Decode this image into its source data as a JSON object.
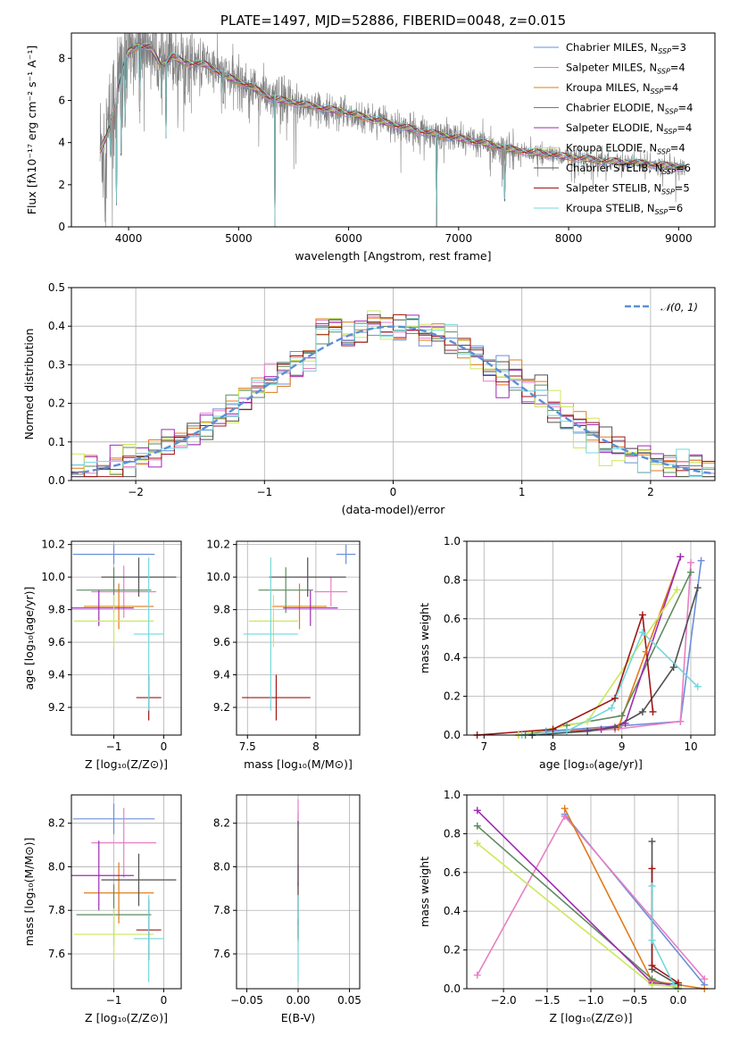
{
  "colors": {
    "chabrier_miles": "#6a8fd8",
    "salpeter_miles": "#e77fc4",
    "kroupa_miles": "#e07b1a",
    "chabrier_elodie": "#5f8a5f",
    "salpeter_elodie": "#a02ab5",
    "kroupa_elodie": "#cce85a",
    "chabrier_stelib": "#505050",
    "salpeter_stelib": "#a01515",
    "kroupa_stelib": "#72d8dc",
    "data": "#808080",
    "gauss": "#5b8fd6"
  },
  "chart_data": [
    {
      "id": "spectrum",
      "type": "line",
      "title": "PLATE=1497, MJD=52886, FIBERID=0048, z=0.015",
      "xlabel": "wavelength [Angstrom, rest frame]",
      "ylabel": "Flux [fλ10⁻¹⁷ erg cm⁻² s⁻¹ A⁻¹]",
      "xlim": [
        3480,
        9330
      ],
      "ylim": [
        0,
        9.2
      ],
      "xticks": [
        4000,
        5000,
        6000,
        7000,
        8000,
        9000
      ],
      "yticks": [
        0,
        2,
        4,
        6,
        8
      ],
      "grid": false,
      "legend_position": "upper-right",
      "legend": [
        {
          "key": "chabrier_miles",
          "label": "Chabrier MILES, N",
          "sub": "SSP",
          "value": "=3"
        },
        {
          "key": "salpeter_miles",
          "label": "Salpeter MILES, N",
          "sub": "SSP",
          "value": "=4"
        },
        {
          "key": "kroupa_miles",
          "label": "Kroupa MILES, N",
          "sub": "SSP",
          "value": "=4"
        },
        {
          "key": "chabrier_elodie",
          "label": "Chabrier ELODIE, N",
          "sub": "SSP",
          "value": "=4"
        },
        {
          "key": "salpeter_elodie",
          "label": "Salpeter ELODIE, N",
          "sub": "SSP",
          "value": "=4"
        },
        {
          "key": "kroupa_elodie",
          "label": "Kroupa ELODIE, N",
          "sub": "SSP",
          "value": "=4"
        },
        {
          "key": "chabrier_stelib",
          "label": "Chabrier STELIB, N",
          "sub": "SSP",
          "value": "=6"
        },
        {
          "key": "salpeter_stelib",
          "label": "Salpeter STELIB, N",
          "sub": "SSP",
          "value": "=5"
        },
        {
          "key": "kroupa_stelib",
          "label": "Kroupa STELIB, N",
          "sub": "SSP",
          "value": "=6"
        }
      ],
      "model_continuum": {
        "x": [
          3740,
          3800,
          3850,
          3900,
          3950,
          4000,
          4100,
          4200,
          4300,
          4400,
          4500,
          4700,
          4900,
          5100,
          5300,
          5500,
          5700,
          6000,
          6300,
          6600,
          6900,
          7200,
          7500,
          7800,
          8100,
          8400,
          8700,
          9000,
          9060
        ],
        "y": [
          3.6,
          4.3,
          5.2,
          6.6,
          7.6,
          8.3,
          8.6,
          8.5,
          7.6,
          8.1,
          7.8,
          7.7,
          7.1,
          6.7,
          6.1,
          5.9,
          5.7,
          5.4,
          5.0,
          4.6,
          4.3,
          4.0,
          3.65,
          3.45,
          3.25,
          3.1,
          3.0,
          2.85,
          2.8
        ]
      },
      "model_dips": [
        {
          "x": 3835,
          "y": 3.0
        },
        {
          "x": 3889,
          "y": 0.0
        },
        {
          "x": 3934,
          "y": 1.5
        },
        {
          "x": 3970,
          "y": 3.2
        },
        {
          "x": 4102,
          "y": 4.0
        },
        {
          "x": 4300,
          "y": 5.4
        },
        {
          "x": 4340,
          "y": 4.2
        },
        {
          "x": 4861,
          "y": 5.6
        },
        {
          "x": 5330,
          "y": 0.0
        },
        {
          "x": 6800,
          "y": 0.0
        },
        {
          "x": 7420,
          "y": 0.0
        }
      ],
      "data_x_range": [
        3740,
        9060
      ]
    },
    {
      "id": "residuals",
      "type": "area",
      "xlabel": "(data-model)/error",
      "ylabel": "Normed distribution",
      "xlim": [
        -2.5,
        2.5
      ],
      "ylim": [
        0,
        0.5
      ],
      "xticks": [
        -2,
        -1,
        0,
        1,
        2
      ],
      "yticks": [
        0.0,
        0.1,
        0.2,
        0.3,
        0.4,
        0.5
      ],
      "grid": true,
      "legend_position": "upper-right",
      "legend_label": "𝒩(0, 1)",
      "bin_width": 0.1,
      "x_start": -2.5
    },
    {
      "id": "age_vs_Z",
      "type": "scatter",
      "xlabel": "Z [log₁₀(Z/Z⊙)]",
      "ylabel": "age [log₁₀(age/yr)]",
      "xlim": [
        -1.85,
        0.35
      ],
      "ylim": [
        9.03,
        10.22
      ],
      "xticks": [
        -1,
        0
      ],
      "yticks": [
        9.2,
        9.4,
        9.6,
        9.8,
        10.0,
        10.2
      ],
      "grid": true,
      "points": [
        {
          "key": "chabrier_miles",
          "x": -1.0,
          "y": 10.14,
          "xerr": 0.82,
          "yerr": 0.06
        },
        {
          "key": "salpeter_miles",
          "x": -0.8,
          "y": 9.91,
          "xerr": 0.65,
          "yerr": 0.16
        },
        {
          "key": "kroupa_miles",
          "x": -0.9,
          "y": 9.82,
          "xerr": 0.7,
          "yerr": 0.14
        },
        {
          "key": "chabrier_elodie",
          "x": -1.0,
          "y": 9.92,
          "xerr": 0.75,
          "yerr": 0.14
        },
        {
          "key": "salpeter_elodie",
          "x": -1.3,
          "y": 9.81,
          "xerr": 0.7,
          "yerr": 0.11
        },
        {
          "key": "kroupa_elodie",
          "x": -1.0,
          "y": 9.73,
          "xerr": 0.8,
          "yerr": 0.16
        },
        {
          "key": "chabrier_stelib",
          "x": -0.5,
          "y": 10.0,
          "xerr": 0.75,
          "yerr": 0.12
        },
        {
          "key": "salpeter_stelib",
          "x": -0.3,
          "y": 9.26,
          "xerr": 0.25,
          "yerr": 0.14
        },
        {
          "key": "kroupa_stelib",
          "x": -0.3,
          "y": 9.65,
          "xerr": 0.3,
          "yerr": 0.47
        }
      ]
    },
    {
      "id": "age_vs_mass",
      "type": "scatter",
      "xlabel": "mass [log₁₀(M/M⊙)]",
      "ylabel": "",
      "xlim": [
        7.42,
        8.32
      ],
      "ylim": [
        9.03,
        10.22
      ],
      "xticks": [
        7.5,
        8.0
      ],
      "yticks": [
        9.2,
        9.4,
        9.6,
        9.8,
        10.0,
        10.2
      ],
      "grid": true,
      "points": [
        {
          "key": "chabrier_miles",
          "x": 8.22,
          "y": 10.14,
          "xerr": 0.07,
          "yerr": 0.06
        },
        {
          "key": "salpeter_miles",
          "x": 8.11,
          "y": 9.91,
          "xerr": 0.12,
          "yerr": 0.09
        },
        {
          "key": "kroupa_miles",
          "x": 7.88,
          "y": 9.82,
          "xerr": 0.2,
          "yerr": 0.14
        },
        {
          "key": "chabrier_elodie",
          "x": 7.78,
          "y": 9.92,
          "xerr": 0.2,
          "yerr": 0.14
        },
        {
          "key": "salpeter_elodie",
          "x": 7.96,
          "y": 9.81,
          "xerr": 0.2,
          "yerr": 0.11
        },
        {
          "key": "kroupa_elodie",
          "x": 7.69,
          "y": 9.73,
          "xerr": 0.18,
          "yerr": 0.16
        },
        {
          "key": "chabrier_stelib",
          "x": 7.94,
          "y": 10.0,
          "xerr": 0.28,
          "yerr": 0.12
        },
        {
          "key": "salpeter_stelib",
          "x": 7.71,
          "y": 9.26,
          "xerr": 0.25,
          "yerr": 0.14
        },
        {
          "key": "kroupa_stelib",
          "x": 7.67,
          "y": 9.65,
          "xerr": 0.2,
          "yerr": 0.47
        }
      ]
    },
    {
      "id": "weight_vs_age",
      "type": "line",
      "xlabel": "age [log₁₀(age/yr)]",
      "ylabel": "mass weight",
      "xlim": [
        6.75,
        10.35
      ],
      "ylim": [
        0,
        1.0
      ],
      "xticks": [
        7,
        8,
        9,
        10
      ],
      "yticks": [
        0.0,
        0.2,
        0.4,
        0.6,
        0.8,
        1.0
      ],
      "grid": true,
      "series": [
        {
          "key": "chabrier_miles",
          "x": [
            7.9,
            9.85,
            10.15
          ],
          "y": [
            0.02,
            0.07,
            0.9
          ]
        },
        {
          "key": "salpeter_miles",
          "x": [
            7.55,
            8.9,
            9.85,
            10.0
          ],
          "y": [
            0.0,
            0.03,
            0.07,
            0.89
          ]
        },
        {
          "key": "kroupa_miles",
          "x": [
            7.5,
            8.95,
            9.85,
            9.35
          ],
          "y": [
            0.0,
            0.04,
            0.92,
            0.43
          ]
        },
        {
          "key": "chabrier_elodie",
          "x": [
            7.6,
            8.2,
            9.0,
            10.0
          ],
          "y": [
            0.0,
            0.05,
            0.1,
            0.84
          ]
        },
        {
          "key": "salpeter_elodie",
          "x": [
            7.7,
            8.7,
            9.05,
            9.85
          ],
          "y": [
            0.0,
            0.03,
            0.06,
            0.92
          ]
        },
        {
          "key": "kroupa_elodie",
          "x": [
            7.5,
            8.5,
            9.8
          ],
          "y": [
            0.0,
            0.07,
            0.75
          ]
        },
        {
          "key": "chabrier_stelib",
          "x": [
            7.7,
            8.5,
            8.9,
            9.3,
            9.75,
            10.1
          ],
          "y": [
            0.0,
            0.02,
            0.04,
            0.12,
            0.35,
            0.76
          ]
        },
        {
          "key": "salpeter_stelib",
          "x": [
            6.9,
            8.0,
            8.9,
            9.3,
            9.45
          ],
          "y": [
            0.0,
            0.03,
            0.19,
            0.62,
            0.12
          ]
        },
        {
          "key": "kroupa_stelib",
          "x": [
            7.55,
            8.2,
            8.85,
            9.3,
            10.1
          ],
          "y": [
            0.0,
            0.02,
            0.14,
            0.53,
            0.25
          ]
        }
      ]
    },
    {
      "id": "mass_vs_Z",
      "type": "scatter",
      "xlabel": "Z [log₁₀(Z/Z⊙)]",
      "ylabel": "mass [log₁₀(M/M⊙)]",
      "xlim": [
        -1.85,
        0.35
      ],
      "ylim": [
        7.44,
        8.33
      ],
      "xticks": [
        -1,
        0
      ],
      "yticks": [
        7.6,
        7.8,
        8.0,
        8.2
      ],
      "grid": true,
      "points": [
        {
          "key": "chabrier_miles",
          "x": -1.0,
          "y": 8.22,
          "xerr": 0.82,
          "yerr": 0.07
        },
        {
          "key": "salpeter_miles",
          "x": -0.8,
          "y": 8.11,
          "xerr": 0.65,
          "yerr": 0.16
        },
        {
          "key": "kroupa_miles",
          "x": -0.9,
          "y": 7.88,
          "xerr": 0.7,
          "yerr": 0.14
        },
        {
          "key": "chabrier_elodie",
          "x": -1.0,
          "y": 7.78,
          "xerr": 0.75,
          "yerr": 0.14
        },
        {
          "key": "salpeter_elodie",
          "x": -1.3,
          "y": 7.96,
          "xerr": 0.7,
          "yerr": 0.16
        },
        {
          "key": "kroupa_elodie",
          "x": -1.0,
          "y": 7.69,
          "xerr": 0.8,
          "yerr": 0.12
        },
        {
          "key": "chabrier_stelib",
          "x": -0.5,
          "y": 7.94,
          "xerr": 0.75,
          "yerr": 0.12
        },
        {
          "key": "salpeter_stelib",
          "x": -0.3,
          "y": 7.71,
          "xerr": 0.25,
          "yerr": 0.14
        },
        {
          "key": "kroupa_stelib",
          "x": -0.3,
          "y": 7.67,
          "xerr": 0.3,
          "yerr": 0.2
        }
      ]
    },
    {
      "id": "mass_vs_ebv",
      "type": "scatter",
      "xlabel": "E(B-V)",
      "ylabel": "",
      "xlim": [
        -0.06,
        0.06
      ],
      "ylim": [
        7.44,
        8.33
      ],
      "xticks": [
        -0.05,
        0.0,
        0.05
      ],
      "xticklabels": [
        "−0.05",
        "0.00",
        "0.05"
      ],
      "yticks": [
        7.6,
        7.8,
        8.0,
        8.2
      ],
      "grid": true,
      "points": [
        {
          "key": "chabrier_miles",
          "x": 0.0,
          "y": 8.22,
          "xerr": 0,
          "yerr": 0.03
        },
        {
          "key": "salpeter_miles",
          "x": 0.0,
          "y": 8.11,
          "xerr": 0,
          "yerr": 0.2
        },
        {
          "key": "kroupa_miles",
          "x": 0.0,
          "y": 7.88,
          "xerr": 0,
          "yerr": 0.05
        },
        {
          "key": "chabrier_elodie",
          "x": 0.0,
          "y": 7.78,
          "xerr": 0,
          "yerr": 0.05
        },
        {
          "key": "salpeter_elodie",
          "x": 0.0,
          "y": 7.96,
          "xerr": 0,
          "yerr": 0.05
        },
        {
          "key": "kroupa_elodie",
          "x": 0.0,
          "y": 7.69,
          "xerr": 0,
          "yerr": 0.05
        },
        {
          "key": "chabrier_stelib",
          "x": 0.0,
          "y": 7.94,
          "xerr": 0,
          "yerr": 0.27
        },
        {
          "key": "salpeter_stelib",
          "x": 0.0,
          "y": 7.71,
          "xerr": 0,
          "yerr": 0.05
        },
        {
          "key": "kroupa_stelib",
          "x": 0.0,
          "y": 7.67,
          "xerr": 0,
          "yerr": 0.2
        }
      ]
    },
    {
      "id": "weight_vs_Z",
      "type": "line",
      "xlabel": "Z [log₁₀(Z/Z⊙)]",
      "ylabel": "mass weight",
      "xlim": [
        -2.42,
        0.42
      ],
      "ylim": [
        0,
        1.0
      ],
      "xticks": [
        -2.0,
        -1.5,
        -1.0,
        -0.5,
        0.0
      ],
      "xticklabels": [
        "−2.0",
        "−1.5",
        "−1.0",
        "−0.5",
        "0.0"
      ],
      "yticks": [
        0.0,
        0.2,
        0.4,
        0.6,
        0.8,
        1.0
      ],
      "grid": true,
      "series": [
        {
          "key": "chabrier_miles",
          "x": [
            -1.3,
            0.3
          ],
          "y": [
            0.9,
            0.02
          ]
        },
        {
          "key": "salpeter_miles",
          "x": [
            -2.3,
            -1.3,
            0.3
          ],
          "y": [
            0.07,
            0.89,
            0.05
          ]
        },
        {
          "key": "kroupa_miles",
          "x": [
            -1.3,
            -0.3,
            0.3
          ],
          "y": [
            0.93,
            0.04,
            0.0
          ]
        },
        {
          "key": "chabrier_elodie",
          "x": [
            -2.3,
            -0.3,
            0.0
          ],
          "y": [
            0.84,
            0.05,
            0.0
          ]
        },
        {
          "key": "salpeter_elodie",
          "x": [
            -2.3,
            -0.3,
            0.0
          ],
          "y": [
            0.92,
            0.03,
            0.02
          ]
        },
        {
          "key": "kroupa_elodie",
          "x": [
            -2.3,
            -0.3,
            0.0
          ],
          "y": [
            0.75,
            0.02,
            0.01
          ]
        },
        {
          "key": "chabrier_stelib",
          "x": [
            -0.3,
            -0.3,
            0.0
          ],
          "y": [
            0.76,
            0.1,
            0.02
          ]
        },
        {
          "key": "salpeter_stelib",
          "x": [
            -0.3,
            -0.3,
            0.0
          ],
          "y": [
            0.62,
            0.12,
            0.03
          ]
        },
        {
          "key": "kroupa_stelib",
          "x": [
            -0.3,
            -0.3,
            -0.05
          ],
          "y": [
            0.53,
            0.25,
            0.02
          ]
        }
      ]
    }
  ]
}
